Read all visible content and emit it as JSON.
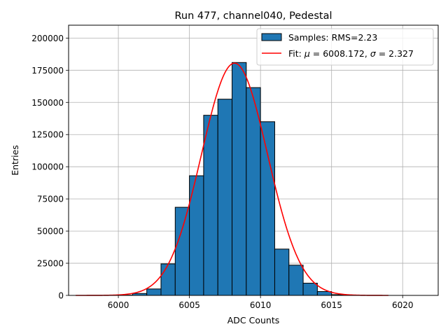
{
  "chart_data": {
    "type": "bar",
    "title": "Run 477, channel040, Pedestal",
    "xlabel": "ADC Counts",
    "ylabel": "Entries",
    "xlim": [
      5996.5,
      6022.5
    ],
    "ylim": [
      0,
      210000
    ],
    "xticks": [
      6000,
      6005,
      6010,
      6015,
      6020
    ],
    "yticks": [
      0,
      25000,
      50000,
      75000,
      100000,
      125000,
      150000,
      175000,
      200000
    ],
    "grid": true,
    "legend_position": "upper-right",
    "bar_color": "#1f77b4",
    "fit_color": "#ff0000",
    "histogram": {
      "name": "Samples: RMS=2.23",
      "bin_width": 1,
      "bin_edges_start": [
        6000,
        6001,
        6002,
        6003,
        6004,
        6005,
        6006,
        6007,
        6008,
        6009,
        6010,
        6011,
        6012,
        6013,
        6014,
        6015,
        6016,
        6017,
        6018
      ],
      "counts": [
        200,
        1500,
        5000,
        24500,
        68500,
        93000,
        140000,
        152500,
        181000,
        161500,
        135000,
        36000,
        23500,
        9500,
        3000,
        600,
        100,
        0,
        0
      ]
    },
    "fit": {
      "name": "Fit: μ = 6008.172, σ = 2.327",
      "legend_prefix": "Fit: ",
      "legend_mu_symbol": "μ",
      "legend_mu_value": " = 6008.172, ",
      "legend_sigma_symbol": "σ",
      "legend_sigma_value": " = 2.327",
      "mu": 6008.172,
      "sigma": 2.327,
      "amplitude": 180500,
      "x_range": [
        5997,
        6019
      ]
    }
  }
}
